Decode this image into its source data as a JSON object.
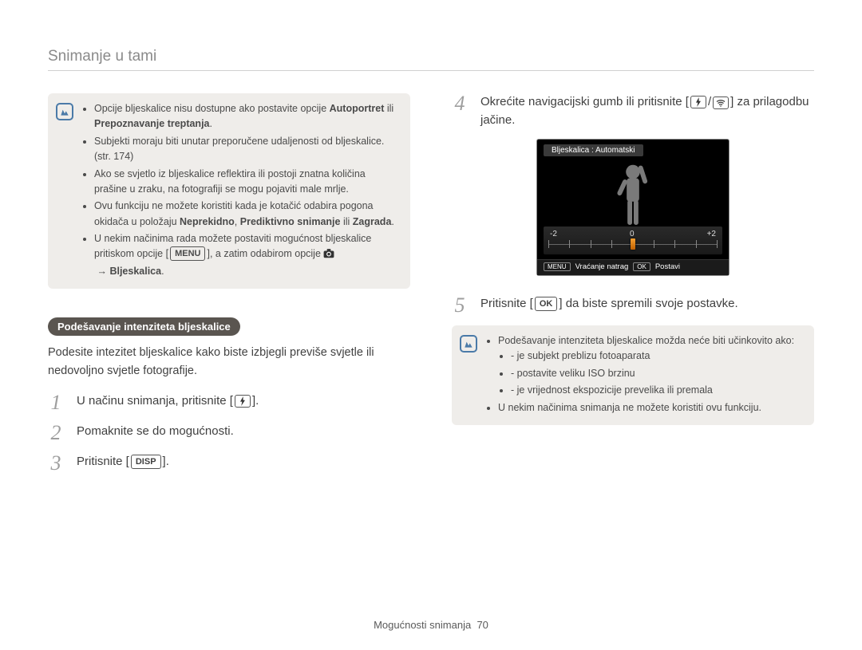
{
  "pageTitle": "Snimanje u tami",
  "footer": {
    "section": "Mogućnosti snimanja",
    "page": "70"
  },
  "left": {
    "note": {
      "items": [
        {
          "pre": "Opcije bljeskalice nisu dostupne ako postavite opcije ",
          "b1": "Autoportret",
          "mid": " ili ",
          "b2": "Prepoznavanje treptanja",
          "post": "."
        },
        {
          "text": "Subjekti moraju biti unutar preporučene udaljenosti od bljeskalice. (str. 174)"
        },
        {
          "text": "Ako se svjetlo iz bljeskalice reflektira ili postoji znatna količina prašine u zraku, na fotografiji se mogu pojaviti male mrlje."
        },
        {
          "pre": "Ovu funkciju ne možete koristiti kada je kotačić odabira pogona okidača u položaju ",
          "b1": "Neprekidno",
          "sep1": ", ",
          "b2": "Prediktivno snimanje",
          "sep2": " ili ",
          "b3": "Zagrada",
          "post": "."
        },
        {
          "pre": "U nekim načinima rada možete postaviti mogućnost bljeskalice pritiskom opcije [",
          "btn": "MENU",
          "mid": "], a zatim odabirom opcije ",
          "iconThen": true,
          "b1": "Bljeskalica",
          "post": "."
        }
      ]
    },
    "pill": "Podešavanje intenziteta bljeskalice",
    "intro": "Podesite intezitet bljeskalice kako biste izbjegli previše svjetle ili nedovoljno svjetle fotografije.",
    "steps": {
      "s1_pre": "U načinu snimanja, pritisnite [",
      "s1_post": "].",
      "s2": "Pomaknite se do mogućnosti.",
      "s3_pre": "Pritisnite [",
      "s3_btn": "DISP",
      "s3_post": "]."
    }
  },
  "right": {
    "s4_pre": "Okrećite navigacijski gumb ili pritisnite [",
    "s4_mid": "/",
    "s4_post": "] za prilagodbu jačine.",
    "lcd": {
      "title": "Bljeskalica : Automatski",
      "minus": "-2",
      "zero": "0",
      "plus": "+2",
      "back_tag": "MENU",
      "back_label": "Vraćanje natrag",
      "ok_tag": "OK",
      "ok_label": "Postavi",
      "tick_count": 9,
      "colors": {
        "bg": "#000000",
        "knob_top": "#f5a030",
        "knob_bottom": "#c06000"
      }
    },
    "s5_pre": "Pritisnite [",
    "s5_btn": "OK",
    "s5_post": "] da biste spremili svoje postavke.",
    "note": {
      "lead": "Podešavanje intenziteta bljeskalice možda neće biti učinkovito ako:",
      "sub": [
        "je subjekt preblizu fotoaparata",
        "postavite veliku ISO brzinu",
        "je vrijednost ekspozicije prevelika ili premala"
      ],
      "last": "U nekim načinima snimanja ne možete koristiti ovu funkciju."
    }
  }
}
